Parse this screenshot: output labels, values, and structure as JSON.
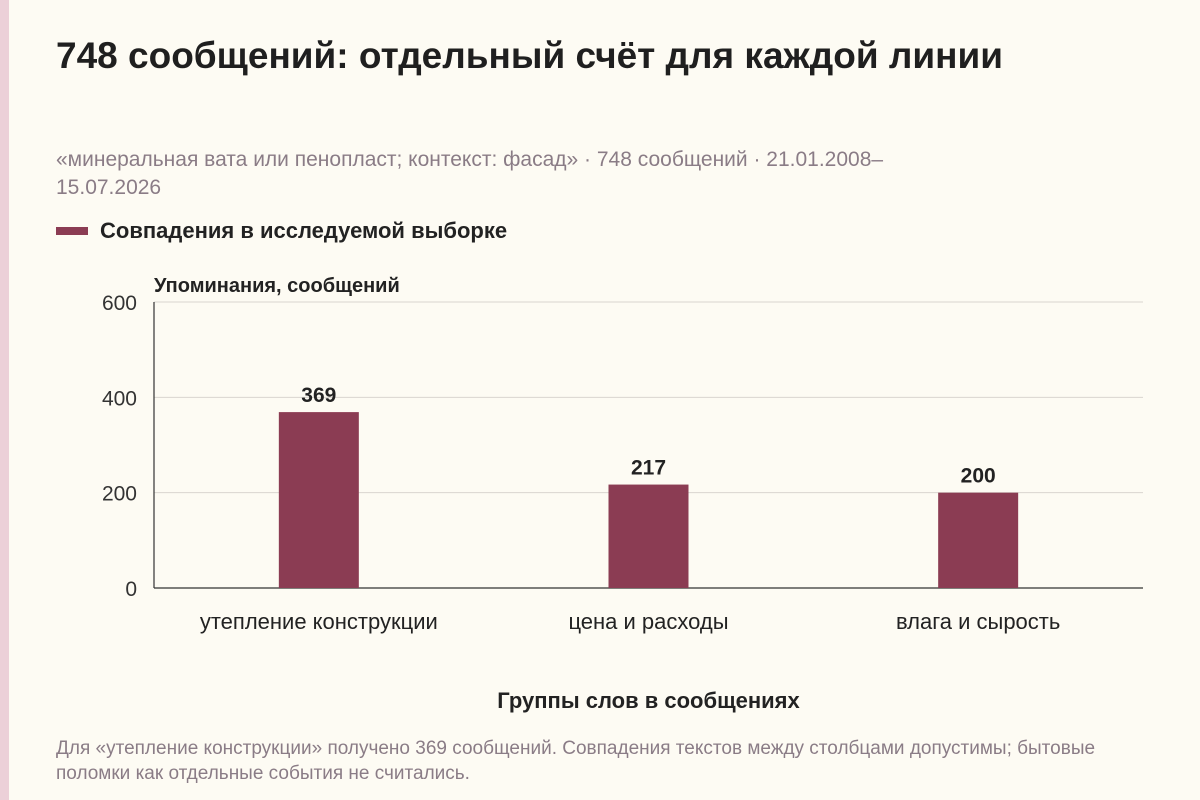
{
  "header": {
    "title": "748 сообщений: отдельный счёт для каждой линии",
    "subtitle": "«минеральная вата или пенопласт; контекст: фасад» · 748 сообщений · 21.01.2008–15.07.2026"
  },
  "legend": {
    "label": "Совпадения в исследуемой выборке",
    "color": "#8b3c53"
  },
  "chart_data": {
    "type": "bar",
    "title": "748 сообщений: отдельный счёт для каждой линии",
    "ylabel": "Упоминания, сообщений",
    "xlabel": "Группы слов в сообщениях",
    "categories": [
      "утепление конструкции",
      "цена и расходы",
      "влага и сырость"
    ],
    "series": [
      {
        "name": "Совпадения в исследуемой выборке",
        "values": [
          369,
          217,
          200
        ],
        "color": "#8b3c53"
      }
    ],
    "ylim": [
      0,
      600
    ],
    "yticks": [
      0,
      200,
      400,
      600
    ],
    "grid": true
  },
  "footnote": "Для «утепление конструкции» получено 369 сообщений. Совпадения текстов между столбцами допустимы; бытовые поломки как отдельные события не считались."
}
